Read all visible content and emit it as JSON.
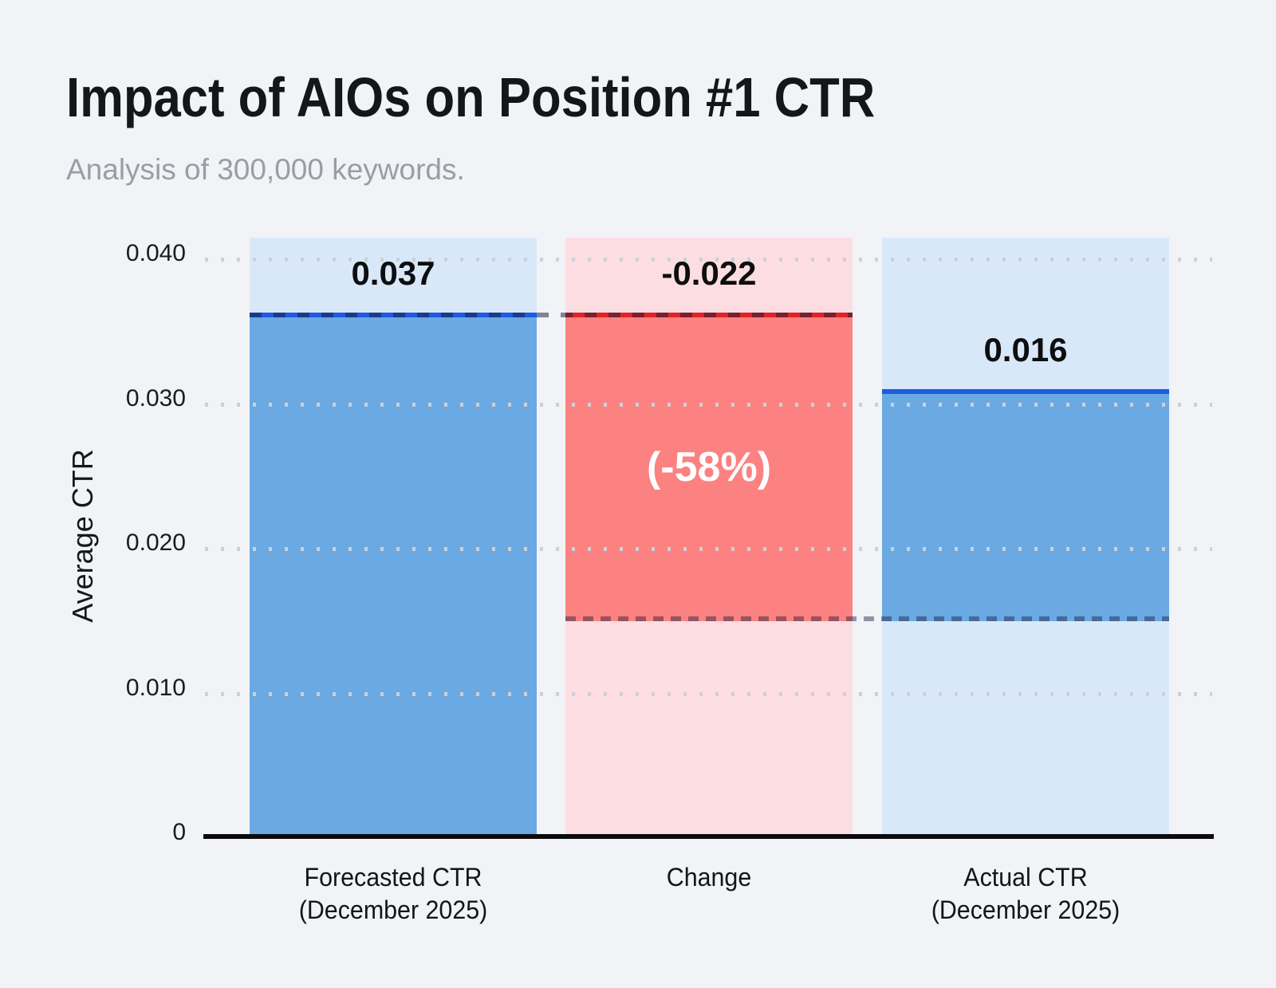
{
  "title": "Impact of AIOs on Position #1 CTR",
  "subtitle": "Analysis of 300,000 keywords.",
  "colors": {
    "background": "#f2f3f6",
    "bar_blue": "#6aa9e2",
    "bar_blue_light": "#d9e8f9",
    "bar_red": "#fc8181",
    "bar_red_light": "#fcdee2",
    "line_blue": "#1d5be0",
    "line_red": "#e02424",
    "grid_dot": "#ccd0d7",
    "axis_black": "#0b0b0d",
    "title_text": "#15161a",
    "subtitle_text": "#9a9da5",
    "value_text": "#0d0e10",
    "annotation_text": "#ffffff"
  },
  "chart_data": {
    "type": "bar",
    "variant": "waterfall",
    "title": "Impact of AIOs on Position #1 CTR",
    "subtitle": "Analysis of 300,000 keywords.",
    "xlabel": "",
    "ylabel": "Average CTR",
    "ylim": [
      0,
      0.0415
    ],
    "yticks": [
      0.04,
      0.03,
      0.02,
      0.01,
      0
    ],
    "ytick_labels": [
      "0.040",
      "0.030",
      "0.020",
      "0.010",
      "0"
    ],
    "grid": "dotted-horizontal",
    "legend": "none",
    "categories": [
      "Forecasted CTR (December 2025)",
      "Change",
      "Actual CTR (December 2025)"
    ],
    "values": [
      0.037,
      -0.022,
      0.016
    ],
    "bars": [
      {
        "name": "Forecasted CTR (December 2025)",
        "label_lines": [
          "Forecasted CTR",
          "(December 2025)"
        ],
        "value": 0.037,
        "value_label": "0.037",
        "draw_from": 0,
        "draw_to": 0.036,
        "palette": "blue"
      },
      {
        "name": "Change",
        "label_lines": [
          "Change",
          ""
        ],
        "value": -0.022,
        "value_label": "-0.022",
        "annotation": "(-58%)",
        "draw_from": 0.015,
        "draw_to": 0.036,
        "palette": "red"
      },
      {
        "name": "Actual CTR (December 2025)",
        "label_lines": [
          "Actual CTR",
          "(December 2025)"
        ],
        "value": 0.016,
        "value_label": "0.016",
        "draw_from": 0.015,
        "draw_to": 0.0307,
        "palette": "blue"
      }
    ],
    "connectors": [
      {
        "style": "dashed",
        "between": "forecast-top and change-top",
        "level": 0.036
      },
      {
        "style": "dashed",
        "between": "change-bottom and actual-bar",
        "level": 0.015
      }
    ]
  }
}
